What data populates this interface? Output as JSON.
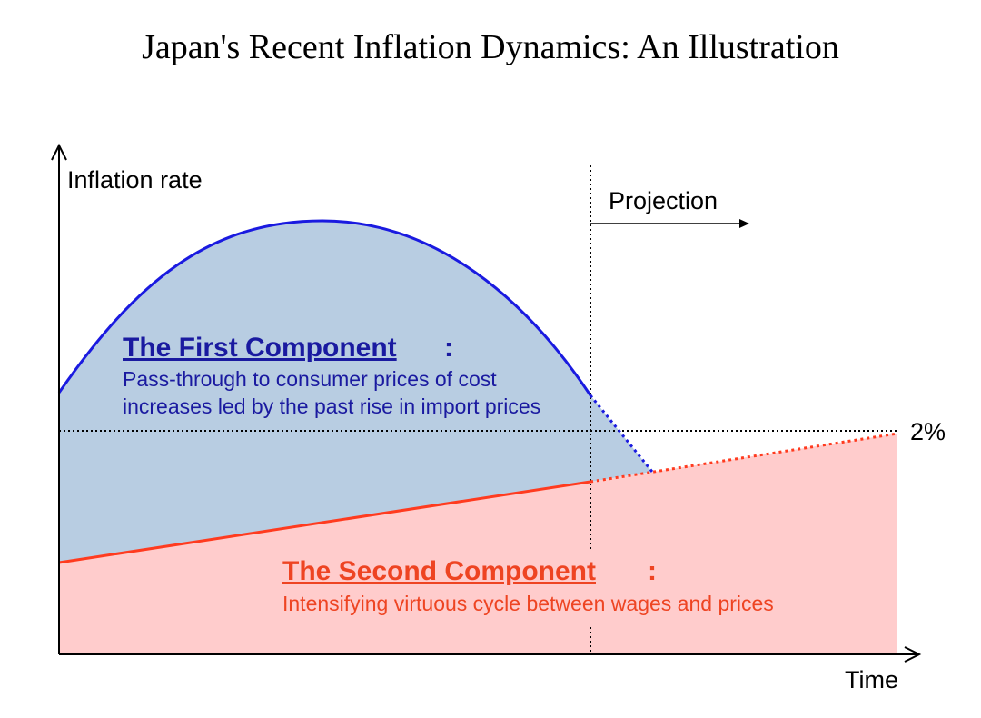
{
  "chart_data": {
    "type": "area",
    "title": "Japan's Recent Inflation Dynamics: An Illustration",
    "ylabel": "Inflation rate",
    "xlabel": "Time",
    "projection_label": "Projection",
    "target_label": "2%",
    "first_component": {
      "name": "The First Component",
      "description_lines": [
        "Pass-through to consumer prices of cost",
        "increases led by the past rise in import prices"
      ]
    },
    "second_component": {
      "name": "The Second Component",
      "description_lines": [
        "Intensifying virtuous cycle between wages and prices"
      ]
    },
    "colors": {
      "first_line": "#1a1ae0",
      "first_fill": "#b8cde2",
      "second_line": "#ff3b1f",
      "second_fill": "#ffcccc",
      "first_text": "#1a1aa0",
      "second_text": "#ee4422",
      "axis": "#000000"
    }
  }
}
